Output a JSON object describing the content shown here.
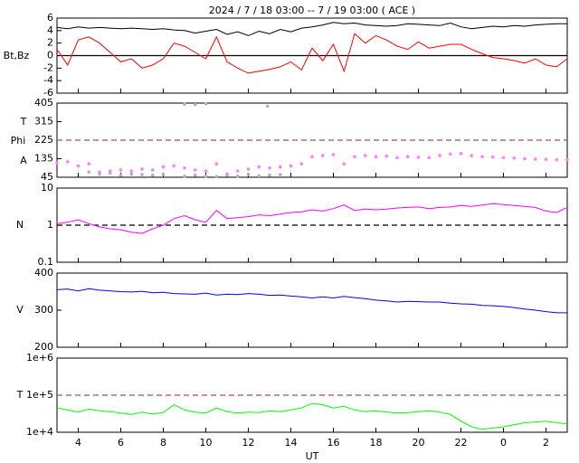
{
  "chart_data": [
    {
      "type": "line",
      "title": "2024 /  7 / 18   03:00 -- 7 / 19  03:00 ( ACE )",
      "ylabels": [
        "Bt,Bz"
      ],
      "x": [
        3,
        3.5,
        4,
        4.5,
        5,
        5.5,
        6,
        6.5,
        7,
        7.5,
        8,
        8.5,
        9,
        9.5,
        10,
        10.5,
        11,
        11.5,
        12,
        12.5,
        13,
        13.5,
        14,
        14.5,
        15,
        15.5,
        16,
        16.5,
        17,
        17.5,
        18,
        18.5,
        19,
        19.5,
        20,
        20.5,
        21,
        21.5,
        22,
        22.5,
        23,
        23.5,
        24,
        24.5,
        25,
        25.5,
        26,
        26.5,
        27
      ],
      "xlim": [
        3,
        27
      ],
      "ylim": [
        -6,
        6
      ],
      "yticks": [
        -6,
        -4,
        -2,
        0,
        2,
        4,
        6
      ],
      "refline": 0,
      "refline_style": "solid",
      "refline_color": "#000000",
      "series": [
        {
          "color": "#000000",
          "values": [
            4.5,
            4.3,
            4.6,
            4.4,
            4.5,
            4.4,
            4.3,
            4.4,
            4.3,
            4.2,
            4.3,
            4.1,
            4.0,
            3.6,
            3.9,
            4.2,
            3.4,
            3.8,
            3.2,
            3.9,
            3.5,
            4.2,
            3.8,
            4.4,
            4.6,
            4.9,
            5.3,
            5.1,
            5.2,
            4.9,
            4.8,
            4.7,
            4.8,
            5.1,
            5.0,
            4.9,
            4.8,
            5.2,
            4.6,
            4.3,
            4.5,
            4.7,
            4.6,
            4.8,
            4.7,
            4.9,
            5.0,
            5.1,
            5.1
          ]
        },
        {
          "color": "#ff0000",
          "values": [
            1,
            -1.5,
            2.5,
            3,
            2,
            0.5,
            -1,
            -0.5,
            -2,
            -1.5,
            -0.5,
            2,
            1.5,
            0.5,
            -0.5,
            3,
            -1,
            -2,
            -2.8,
            -2.5,
            -2.2,
            -1.8,
            -1,
            -2.3,
            1.2,
            -0.8,
            1.8,
            -2.5,
            3.5,
            2,
            3.2,
            2.5,
            1.5,
            1,
            2.2,
            1.2,
            1.5,
            1.8,
            1.8,
            1,
            0.3,
            -0.3,
            -0.5,
            -0.8,
            -1.2,
            -0.5,
            -1.5,
            -1.8,
            -0.5
          ]
        }
      ]
    },
    {
      "type": "scatter",
      "ylabels": [
        "T",
        "Phi",
        "A"
      ],
      "x": [
        3,
        3.5,
        4,
        4.5,
        5,
        5.5,
        6,
        6.5,
        7,
        7.5,
        8,
        8.5,
        9,
        9.5,
        10,
        10.5,
        11,
        11.5,
        12,
        12.5,
        13,
        13.5,
        14,
        14.5,
        15,
        15.5,
        16,
        16.5,
        17,
        17.5,
        18,
        18.5,
        19,
        19.5,
        20,
        20.5,
        21,
        21.5,
        22,
        22.5,
        23,
        23.5,
        24,
        24.5,
        25,
        25.5,
        26,
        26.5,
        27
      ],
      "xlim": [
        3,
        27
      ],
      "ylim": [
        45,
        405
      ],
      "yticks": [
        45,
        135,
        225,
        315,
        405
      ],
      "refline": 225,
      "refline_style": "dashed",
      "refline_color": "#a05050",
      "series": [
        {
          "color": "#b0b0b0",
          "x": [
            4.5,
            5,
            5.5,
            6,
            6.5,
            7,
            7.5,
            8,
            9,
            9.5,
            10,
            10.5,
            11,
            11.5,
            12,
            12.5,
            13,
            13.5,
            9,
            9.5,
            10,
            12.9
          ],
          "values": [
            70,
            60,
            65,
            55,
            60,
            58,
            55,
            60,
            50,
            55,
            50,
            48,
            55,
            50,
            60,
            52,
            55,
            58,
            400,
            398,
            402,
            390
          ]
        },
        {
          "color": "#ff80ff",
          "values": [
            115,
            120,
            100,
            110,
            70,
            75,
            80,
            75,
            85,
            80,
            95,
            100,
            90,
            80,
            75,
            110,
            60,
            75,
            85,
            95,
            90,
            95,
            100,
            110,
            145,
            150,
            155,
            110,
            145,
            150,
            145,
            148,
            140,
            145,
            142,
            140,
            150,
            158,
            160,
            150,
            145,
            143,
            140,
            138,
            135,
            133,
            132,
            130,
            130
          ]
        }
      ]
    },
    {
      "type": "line",
      "ylabels": [
        "N"
      ],
      "log": true,
      "x": [
        3,
        3.5,
        4,
        4.5,
        5,
        5.5,
        6,
        6.5,
        7,
        7.5,
        8,
        8.5,
        9,
        9.5,
        10,
        10.5,
        11,
        11.5,
        12,
        12.5,
        13,
        13.5,
        14,
        14.5,
        15,
        15.5,
        16,
        16.5,
        17,
        17.5,
        18,
        18.5,
        19,
        19.5,
        20,
        20.5,
        21,
        21.5,
        22,
        22.5,
        23,
        23.5,
        24,
        24.5,
        25,
        25.5,
        26,
        26.5,
        27
      ],
      "xlim": [
        3,
        27
      ],
      "ylim": [
        0.1,
        10
      ],
      "yticks": [
        0.1,
        1,
        10
      ],
      "refline": 1,
      "refline_style": "dashed",
      "refline_color": "#000000",
      "series": [
        {
          "color": "#ff00ff",
          "values": [
            1.1,
            1.2,
            1.4,
            1.1,
            0.9,
            0.8,
            0.75,
            0.65,
            0.6,
            0.8,
            1.0,
            1.5,
            1.8,
            1.4,
            1.2,
            2.5,
            1.5,
            1.6,
            1.7,
            1.9,
            1.8,
            2.0,
            2.2,
            2.3,
            2.6,
            2.4,
            2.8,
            3.5,
            2.5,
            2.7,
            2.6,
            2.7,
            2.9,
            3.0,
            3.1,
            2.8,
            3.0,
            3.1,
            3.4,
            3.2,
            3.5,
            3.8,
            3.6,
            3.4,
            3.2,
            3.0,
            2.4,
            2.2,
            3.0
          ]
        }
      ]
    },
    {
      "type": "line",
      "ylabels": [
        "V"
      ],
      "x": [
        3,
        3.5,
        4,
        4.5,
        5,
        5.5,
        6,
        6.5,
        7,
        7.5,
        8,
        8.5,
        9,
        9.5,
        10,
        10.5,
        11,
        11.5,
        12,
        12.5,
        13,
        13.5,
        14,
        14.5,
        15,
        15.5,
        16,
        16.5,
        17,
        17.5,
        18,
        18.5,
        19,
        19.5,
        20,
        20.5,
        21,
        21.5,
        22,
        22.5,
        23,
        23.5,
        24,
        24.5,
        25,
        25.5,
        26,
        26.5,
        27
      ],
      "xlim": [
        3,
        27
      ],
      "ylim": [
        200,
        400
      ],
      "yticks": [
        200,
        300,
        400
      ],
      "series": [
        {
          "color": "#0000ff",
          "values": [
            355,
            357,
            352,
            358,
            354,
            352,
            350,
            349,
            351,
            347,
            348,
            345,
            344,
            343,
            346,
            341,
            343,
            342,
            345,
            343,
            340,
            341,
            338,
            336,
            333,
            336,
            333,
            337,
            334,
            331,
            327,
            325,
            322,
            324,
            323,
            322,
            322,
            319,
            317,
            316,
            313,
            312,
            310,
            307,
            303,
            300,
            296,
            293,
            293
          ]
        }
      ]
    },
    {
      "type": "line",
      "ylabels": [
        "T"
      ],
      "log": true,
      "xlabel": "UT",
      "x": [
        3,
        3.5,
        4,
        4.5,
        5,
        5.5,
        6,
        6.5,
        7,
        7.5,
        8,
        8.5,
        9,
        9.5,
        10,
        10.5,
        11,
        11.5,
        12,
        12.5,
        13,
        13.5,
        14,
        14.5,
        15,
        15.5,
        16,
        16.5,
        17,
        17.5,
        18,
        18.5,
        19,
        19.5,
        20,
        20.5,
        21,
        21.5,
        22,
        22.5,
        23,
        23.5,
        24,
        24.5,
        25,
        25.5,
        26,
        26.5,
        27
      ],
      "xlim": [
        3,
        27
      ],
      "xticks": [
        4,
        6,
        8,
        10,
        12,
        14,
        16,
        18,
        20,
        22,
        {
          "value": 24,
          "label": "0"
        },
        {
          "value": 26,
          "label": "2"
        }
      ],
      "ylim": [
        10000,
        1000000
      ],
      "yticks": [
        {
          "value": 10000,
          "label": "1e+4"
        },
        {
          "value": 100000,
          "label": "1e+5"
        },
        {
          "value": 1000000,
          "label": "1e+6"
        }
      ],
      "refline": 100000,
      "refline_style": "dashed",
      "refline_color": "#a05050",
      "series": [
        {
          "color": "#00ff00",
          "values": [
            45000,
            40000,
            35000,
            42000,
            38000,
            36000,
            33000,
            30000,
            35000,
            31000,
            34000,
            55000,
            40000,
            35000,
            33000,
            45000,
            36000,
            33000,
            35000,
            34000,
            38000,
            36000,
            40000,
            45000,
            60000,
            55000,
            45000,
            50000,
            40000,
            36000,
            38000,
            35000,
            33000,
            34000,
            36000,
            38000,
            35000,
            30000,
            20000,
            14000,
            12000,
            13000,
            14000,
            16000,
            18000,
            19000,
            20000,
            18000,
            17000
          ]
        }
      ]
    }
  ]
}
